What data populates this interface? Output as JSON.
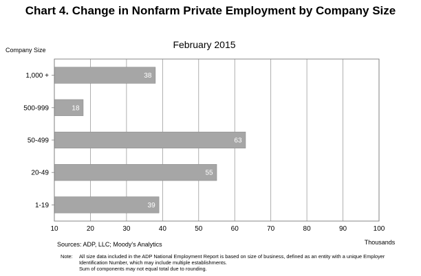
{
  "chart_data": {
    "type": "bar",
    "orientation": "horizontal",
    "title": "Chart 4. Change in Nonfarm Private Employment by Company Size",
    "subtitle": "February 2015",
    "ylabel": "Company Size",
    "xlabel": "Thousands",
    "categories": [
      "1,000 +",
      "500-999",
      "50-499",
      "20-49",
      "1-19"
    ],
    "values": [
      38,
      18,
      63,
      55,
      39
    ],
    "xlim": [
      10,
      100
    ],
    "xticks": [
      10,
      20,
      30,
      40,
      50,
      60,
      70,
      80,
      90,
      100
    ],
    "grid": "vertical",
    "bar_color": "#a6a6a6",
    "label_color": "#ffffff"
  },
  "footer": {
    "sources": "Sources: ADP, LLC; Moody's Analytics",
    "note_label": "Note:",
    "note_lines": [
      "All size data included in the ADP National Employment Report is based on size of business, defined as an entity with a unique Employer",
      "Identification Number, which may include multiple establishments.",
      "Sum of components may not equal total due to rounding."
    ]
  }
}
